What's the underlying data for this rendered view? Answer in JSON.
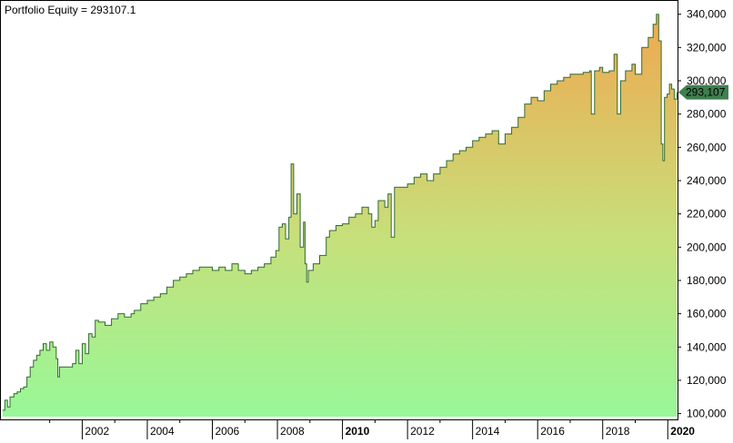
{
  "chart_data": {
    "type": "area",
    "title": "Portfolio Equity = 293107.1",
    "last_value_label": "293,107",
    "xlabel": "",
    "ylabel": "",
    "xlim": [
      1999.5,
      2020.3
    ],
    "ylim": [
      96500,
      348000
    ],
    "grid": false,
    "legend": "none",
    "y_ticks": [
      {
        "value": 100000,
        "label": "100,000"
      },
      {
        "value": 120000,
        "label": "120,000"
      },
      {
        "value": 140000,
        "label": "140,000"
      },
      {
        "value": 160000,
        "label": "160,000"
      },
      {
        "value": 180000,
        "label": "180,000"
      },
      {
        "value": 200000,
        "label": "200,000"
      },
      {
        "value": 220000,
        "label": "220,000"
      },
      {
        "value": 240000,
        "label": "240,000"
      },
      {
        "value": 260000,
        "label": "260,000"
      },
      {
        "value": 280000,
        "label": "280,000"
      },
      {
        "value": 300000,
        "label": "300,000"
      },
      {
        "value": 320000,
        "label": "320,000"
      },
      {
        "value": 340000,
        "label": "340,000"
      }
    ],
    "x_ticks": [
      {
        "value": 2002,
        "label": "2002",
        "bold": false
      },
      {
        "value": 2004,
        "label": "2004",
        "bold": false
      },
      {
        "value": 2006,
        "label": "2006",
        "bold": false
      },
      {
        "value": 2008,
        "label": "2008",
        "bold": false
      },
      {
        "value": 2010,
        "label": "2010",
        "bold": true
      },
      {
        "value": 2012,
        "label": "2012",
        "bold": false
      },
      {
        "value": 2014,
        "label": "2014",
        "bold": false
      },
      {
        "value": 2016,
        "label": "2016",
        "bold": false
      },
      {
        "value": 2018,
        "label": "2018",
        "bold": false
      },
      {
        "value": 2020,
        "label": "2020",
        "bold": true
      }
    ],
    "x_minor_ticks": [
      2001,
      2003,
      2005,
      2007,
      2009,
      2011,
      2013,
      2015,
      2017,
      2019
    ],
    "colors": {
      "line": "#2f6b2f",
      "fill_top": "#f0a850",
      "fill_mid": "#c7df7a",
      "fill_bottom": "#98f898",
      "marker": "#3f7f4f",
      "marker_text": "#ffffff",
      "border": "#000000"
    },
    "series": [
      {
        "values": [
          [
            1999.55,
            102000
          ],
          [
            1999.62,
            108000
          ],
          [
            1999.7,
            104000
          ],
          [
            1999.78,
            110000
          ],
          [
            1999.9,
            112000
          ],
          [
            2000.0,
            113000
          ],
          [
            2000.1,
            115000
          ],
          [
            2000.2,
            116000
          ],
          [
            2000.3,
            122000
          ],
          [
            2000.4,
            128000
          ],
          [
            2000.5,
            132000
          ],
          [
            2000.6,
            135000
          ],
          [
            2000.7,
            138000
          ],
          [
            2000.8,
            142000
          ],
          [
            2000.9,
            138000
          ],
          [
            2001.0,
            143000
          ],
          [
            2001.1,
            140000
          ],
          [
            2001.2,
            133000
          ],
          [
            2001.25,
            122000
          ],
          [
            2001.3,
            128000
          ],
          [
            2001.5,
            128000
          ],
          [
            2001.7,
            130000
          ],
          [
            2001.8,
            138000
          ],
          [
            2001.9,
            130000
          ],
          [
            2002.0,
            142000
          ],
          [
            2002.1,
            136000
          ],
          [
            2002.2,
            148000
          ],
          [
            2002.3,
            146000
          ],
          [
            2002.4,
            156000
          ],
          [
            2002.5,
            155000
          ],
          [
            2002.7,
            153000
          ],
          [
            2002.9,
            157000
          ],
          [
            2003.1,
            160000
          ],
          [
            2003.3,
            158000
          ],
          [
            2003.5,
            160000
          ],
          [
            2003.6,
            162000
          ],
          [
            2003.8,
            166000
          ],
          [
            2004.0,
            168000
          ],
          [
            2004.2,
            170000
          ],
          [
            2004.4,
            172000
          ],
          [
            2004.6,
            176000
          ],
          [
            2004.8,
            180000
          ],
          [
            2005.0,
            182000
          ],
          [
            2005.2,
            184000
          ],
          [
            2005.4,
            186000
          ],
          [
            2005.6,
            188000
          ],
          [
            2005.8,
            188000
          ],
          [
            2006.0,
            186000
          ],
          [
            2006.2,
            188000
          ],
          [
            2006.4,
            186000
          ],
          [
            2006.6,
            190000
          ],
          [
            2006.8,
            186000
          ],
          [
            2007.0,
            184000
          ],
          [
            2007.2,
            186000
          ],
          [
            2007.4,
            188000
          ],
          [
            2007.6,
            190000
          ],
          [
            2007.8,
            194000
          ],
          [
            2007.95,
            198000
          ],
          [
            2008.05,
            212000
          ],
          [
            2008.15,
            214000
          ],
          [
            2008.25,
            205000
          ],
          [
            2008.35,
            218000
          ],
          [
            2008.42,
            250000
          ],
          [
            2008.5,
            220000
          ],
          [
            2008.6,
            232000
          ],
          [
            2008.7,
            200000
          ],
          [
            2008.8,
            215000
          ],
          [
            2008.85,
            190000
          ],
          [
            2008.9,
            179000
          ],
          [
            2008.95,
            186000
          ],
          [
            2009.1,
            190000
          ],
          [
            2009.3,
            195000
          ],
          [
            2009.5,
            206000
          ],
          [
            2009.6,
            210000
          ],
          [
            2009.8,
            213000
          ],
          [
            2010.0,
            214000
          ],
          [
            2010.2,
            218000
          ],
          [
            2010.4,
            220000
          ],
          [
            2010.6,
            224000
          ],
          [
            2010.8,
            220000
          ],
          [
            2010.9,
            212000
          ],
          [
            2011.0,
            216000
          ],
          [
            2011.1,
            228000
          ],
          [
            2011.3,
            224000
          ],
          [
            2011.4,
            232000
          ],
          [
            2011.5,
            206000
          ],
          [
            2011.6,
            236000
          ],
          [
            2011.8,
            236000
          ],
          [
            2012.0,
            238000
          ],
          [
            2012.2,
            242000
          ],
          [
            2012.4,
            244000
          ],
          [
            2012.6,
            240000
          ],
          [
            2012.8,
            244000
          ],
          [
            2013.0,
            248000
          ],
          [
            2013.2,
            252000
          ],
          [
            2013.4,
            256000
          ],
          [
            2013.6,
            258000
          ],
          [
            2013.8,
            260000
          ],
          [
            2014.0,
            264000
          ],
          [
            2014.2,
            266000
          ],
          [
            2014.4,
            268000
          ],
          [
            2014.6,
            270000
          ],
          [
            2014.8,
            262000
          ],
          [
            2015.0,
            268000
          ],
          [
            2015.2,
            272000
          ],
          [
            2015.4,
            278000
          ],
          [
            2015.6,
            286000
          ],
          [
            2015.8,
            290000
          ],
          [
            2016.0,
            288000
          ],
          [
            2016.2,
            294000
          ],
          [
            2016.4,
            298000
          ],
          [
            2016.6,
            300000
          ],
          [
            2016.8,
            302000
          ],
          [
            2017.0,
            304000
          ],
          [
            2017.2,
            304000
          ],
          [
            2017.4,
            305000
          ],
          [
            2017.6,
            306000
          ],
          [
            2017.65,
            280000
          ],
          [
            2017.75,
            306000
          ],
          [
            2017.9,
            308000
          ],
          [
            2018.0,
            305000
          ],
          [
            2018.2,
            306000
          ],
          [
            2018.35,
            316000
          ],
          [
            2018.45,
            280000
          ],
          [
            2018.55,
            300000
          ],
          [
            2018.7,
            306000
          ],
          [
            2018.9,
            310000
          ],
          [
            2019.0,
            304000
          ],
          [
            2019.2,
            320000
          ],
          [
            2019.4,
            326000
          ],
          [
            2019.55,
            334000
          ],
          [
            2019.65,
            340000
          ],
          [
            2019.72,
            324000
          ],
          [
            2019.8,
            262000
          ],
          [
            2019.85,
            252000
          ],
          [
            2019.9,
            290000
          ],
          [
            2019.98,
            292000
          ],
          [
            2020.05,
            298000
          ],
          [
            2020.12,
            295000
          ],
          [
            2020.2,
            289000
          ],
          [
            2020.28,
            293107
          ]
        ]
      }
    ]
  }
}
